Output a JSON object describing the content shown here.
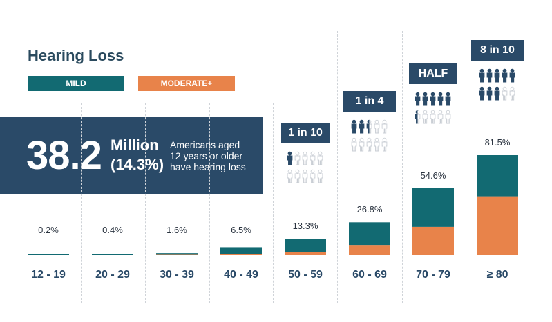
{
  "title": "Hearing Loss",
  "legend": {
    "mild": "MILD",
    "moderate": "MODERATE+"
  },
  "banner": {
    "count": "38.2",
    "unit": "Million",
    "percent": "(14.3%)",
    "desc_line1": "Americans aged",
    "desc_line2": "12 years or older",
    "desc_line3": "have hearing loss"
  },
  "colors": {
    "mild": "#126a72",
    "moderate": "#e8834a",
    "navy": "#2a4a68",
    "figure_filled": "#2a4a68",
    "figure_outline": "#c9ced4"
  },
  "chart_data": {
    "type": "bar",
    "stacked": true,
    "title": "Hearing Loss",
    "categories": [
      "12 - 19",
      "20 - 29",
      "30 - 39",
      "40 - 49",
      "50 - 59",
      "60 - 69",
      "70 - 79",
      "≥ 80"
    ],
    "totals": [
      0.2,
      0.4,
      1.6,
      6.5,
      13.3,
      26.8,
      54.6,
      81.5
    ],
    "total_labels": [
      "0.2%",
      "0.4%",
      "1.6%",
      "6.5%",
      "13.3%",
      "26.8%",
      "54.6%",
      "81.5%"
    ],
    "series": [
      {
        "name": "MILD",
        "values": [
          0.2,
          0.4,
          1.3,
          5.5,
          10.5,
          19.0,
          31.5,
          33.5
        ]
      },
      {
        "name": "MODERATE+",
        "values": [
          0.0,
          0.0,
          0.3,
          1.0,
          2.8,
          7.8,
          23.1,
          48.0
        ]
      }
    ],
    "ylim": [
      0,
      100
    ],
    "ratios": [
      {
        "index": 4,
        "label": "1 in 10",
        "filled": 1.0,
        "total": 10
      },
      {
        "index": 5,
        "label": "1 in 4",
        "filled": 2.5,
        "total": 10
      },
      {
        "index": 6,
        "label": "HALF",
        "filled": 5.5,
        "total": 10
      },
      {
        "index": 7,
        "label": "8 in 10",
        "filled": 8.0,
        "total": 10
      }
    ]
  }
}
